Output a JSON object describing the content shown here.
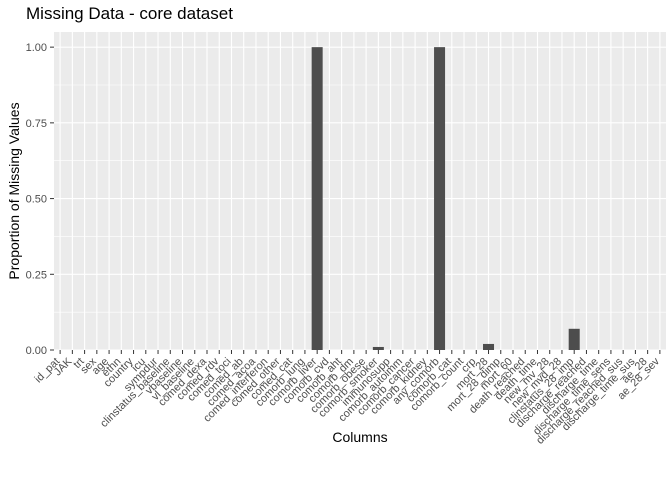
{
  "chart_data": {
    "type": "bar",
    "title": "Missing Data - core dataset",
    "xlabel": "Columns",
    "ylabel": "Proportion of Missing Values",
    "ylim": [
      0,
      1.05
    ],
    "yticks": [
      0.0,
      0.25,
      0.5,
      0.75,
      1.0
    ],
    "ytick_labels": [
      "0.00",
      "0.25",
      "0.50",
      "0.75",
      "1.00"
    ],
    "grid": true,
    "categories": [
      "id_pat",
      "JAK",
      "trt",
      "sex",
      "age",
      "ethn",
      "country",
      "icu",
      "sympdur",
      "clinstatus_baseline",
      "vbaseline",
      "vl_baseline",
      "comed_dexa",
      "comed_rdv",
      "comed_toci",
      "comed_ab",
      "comed_acoa",
      "comed_interferon",
      "comed_other",
      "comed_cat",
      "comorb_lung",
      "comorb_liver",
      "comorb_cvd",
      "comorb_aht",
      "comorb_dm",
      "comorb_obese",
      "comorb_smoker",
      "immunosupp",
      "comorb_autoimm",
      "comorb_cancer",
      "comorb_kidney",
      "any_comorb",
      "comorb_cat",
      "comorb_count",
      "crp",
      "mort_28",
      "mort_28_dimp",
      "mort_60",
      "death_reached",
      "death_time",
      "new_mv_28",
      "new_mvd_28",
      "clinstatus_28_imp",
      "discharge_reached",
      "discharge_time",
      "discharge_time_sens",
      "discharge_reached_sus",
      "discharge_time_sus",
      "ae_28",
      "ae_28_sev"
    ],
    "values": [
      0,
      0,
      0,
      0,
      0,
      0,
      0,
      0,
      0,
      0,
      0,
      0,
      0,
      0,
      0,
      0,
      0,
      0,
      0,
      0,
      0,
      1.0,
      0,
      0,
      0,
      0,
      0.01,
      0,
      0,
      0,
      0,
      1.0,
      0,
      0,
      0,
      0.02,
      0,
      0,
      0,
      0,
      0,
      0,
      0.07,
      0,
      0,
      0,
      0,
      0,
      0,
      0
    ],
    "bar_color": "#4d4d4d",
    "panel_color": "#ebebeb",
    "grid_color": "#ffffff"
  }
}
